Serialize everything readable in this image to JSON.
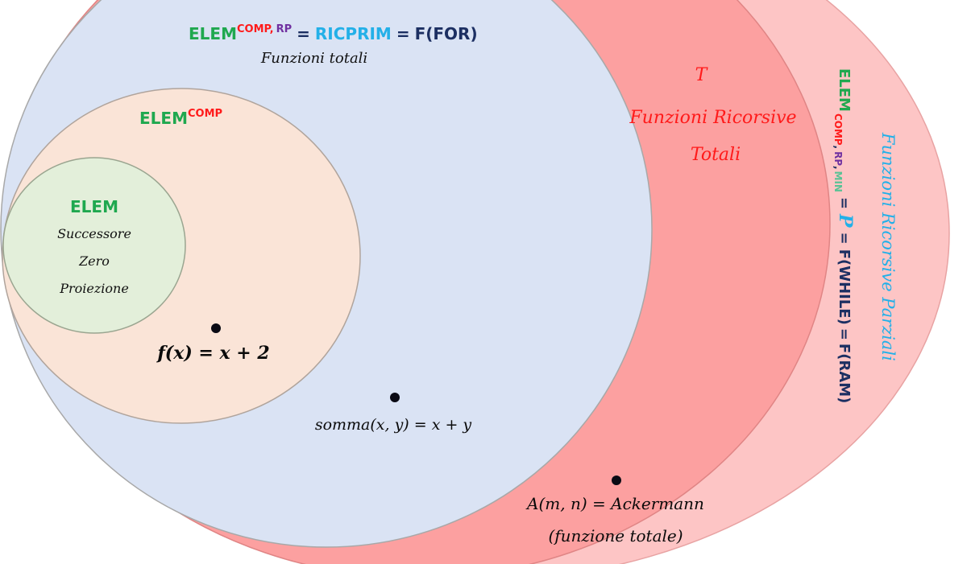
{
  "colors": {
    "outer_fill": "#fdc5c5",
    "tot_fill": "#fca0a0",
    "ricprim_fill": "#dae3f4",
    "comp_fill": "#fae4d7",
    "elem_fill": "#e3efda",
    "green": "#1fa84f",
    "red": "#ff1a1a",
    "purple": "#7030a0",
    "cyan": "#23b0e8",
    "navy": "#1c2f62",
    "mint": "#59c295"
  },
  "ricprim": {
    "elem": "ELEM",
    "sup_comp": "COMP,",
    "sup_rp": "RP",
    "eq1": "=",
    "ricprim": "RICPRIM",
    "eq2": "=",
    "for": "F(FOR)",
    "subtitle": "Funzioni totali"
  },
  "comp": {
    "elem": "ELEM",
    "sup": "COMP"
  },
  "elem": {
    "title": "ELEM",
    "items": [
      "Successore",
      "Zero",
      "Proiezione"
    ]
  },
  "examples": {
    "f": "f(x) = x + 2",
    "somma": "somma(x, y) = x + y",
    "ackermann_1": "A(m, n) = Ackermann",
    "ackermann_2": "(funzione totale)"
  },
  "totali": {
    "symbol": "T",
    "line1": "Funzioni Ricorsive",
    "line2": "Totali"
  },
  "partial": {
    "elem": "ELEM",
    "sub_comp": "COMP",
    "comma1": ",",
    "sub_rp": "RP",
    "comma2": ",",
    "sub_min": "MIN",
    "eq1": "=",
    "p_symbol": "P",
    "eq2": "=",
    "while": "F(WHILE)",
    "eq3": "=",
    "ram": "F(RAM)",
    "side_label": "Funzioni Ricorsive Parziali"
  }
}
